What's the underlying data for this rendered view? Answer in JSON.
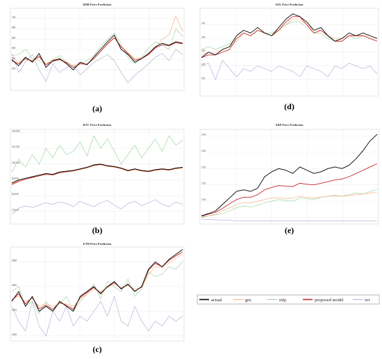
{
  "colors": {
    "actual": "#000000",
    "gru": "#f2a572",
    "mlp": "#8fcf94",
    "proposed_model": "#c62828",
    "svr": "#a8a6d2"
  },
  "legend": {
    "placement": "bottom-right",
    "entries": [
      {
        "key": "actual",
        "label": "actual"
      },
      {
        "key": "gru",
        "label": "gru"
      },
      {
        "key": "mlp",
        "label": "mlp"
      },
      {
        "key": "proposed_model",
        "label": "proposed model"
      },
      {
        "key": "svr",
        "label": "svr"
      }
    ]
  },
  "chart_data": [
    {
      "id": "bnb",
      "panel_label": "(a)",
      "type": "line",
      "grid": true,
      "title": "BNB Price Prediction",
      "ylim": [
        560,
        720
      ],
      "yticks": [
        {
          "v": 600,
          "label": "600"
        },
        {
          "v": 620,
          "label": "620"
        },
        {
          "v": 640,
          "label": "640"
        },
        {
          "v": 660,
          "label": "660"
        },
        {
          "v": 680,
          "label": "680"
        },
        {
          "v": 700,
          "label": "700"
        }
      ],
      "x": [
        0,
        4,
        8,
        12,
        16,
        20,
        24,
        28,
        32,
        36,
        40,
        44,
        48,
        52,
        56,
        60,
        64,
        68,
        72,
        76,
        80,
        84,
        88,
        92,
        96,
        100
      ],
      "series": [
        {
          "key": "actual",
          "values": [
            620,
            608,
            625,
            615,
            632,
            605,
            618,
            622,
            612,
            600,
            615,
            610,
            625,
            640,
            655,
            668,
            640,
            630,
            615,
            622,
            632,
            645,
            652,
            648,
            655,
            652
          ]
        },
        {
          "key": "gru",
          "values": [
            625,
            615,
            624,
            618,
            628,
            612,
            620,
            621,
            616,
            608,
            614,
            612,
            622,
            636,
            650,
            662,
            646,
            634,
            622,
            624,
            630,
            642,
            660,
            668,
            705,
            675
          ]
        },
        {
          "key": "mlp",
          "values": [
            628,
            630,
            640,
            622,
            618,
            610,
            620,
            628,
            615,
            606,
            612,
            618,
            628,
            646,
            660,
            672,
            650,
            625,
            612,
            625,
            642,
            655,
            648,
            640,
            680,
            665
          ]
        },
        {
          "key": "proposed_model",
          "values": [
            618,
            612,
            622,
            617,
            626,
            610,
            617,
            620,
            614,
            604,
            612,
            611,
            622,
            636,
            651,
            663,
            645,
            632,
            619,
            622,
            630,
            643,
            649,
            647,
            653,
            651
          ]
        },
        {
          "key": "svr",
          "values": [
            632,
            595,
            615,
            630,
            600,
            578,
            612,
            595,
            605,
            610,
            590,
            602,
            615,
            622,
            630,
            618,
            595,
            575,
            590,
            600,
            612,
            625,
            632,
            618,
            640,
            630
          ]
        }
      ]
    },
    {
      "id": "sol",
      "panel_label": "(d)",
      "type": "line",
      "grid": true,
      "title": "SOL Price Prediction",
      "ylim": [
        114,
        146
      ],
      "yticks": [
        {
          "v": 120,
          "label": "120"
        },
        {
          "v": 125,
          "label": "125"
        },
        {
          "v": 130,
          "label": "130"
        },
        {
          "v": 135,
          "label": "135"
        },
        {
          "v": 140,
          "label": "140"
        }
      ],
      "x": [
        0,
        4,
        8,
        12,
        16,
        20,
        24,
        28,
        32,
        36,
        40,
        44,
        48,
        52,
        56,
        60,
        64,
        68,
        72,
        76,
        80,
        84,
        88,
        92,
        96,
        100
      ],
      "series": [
        {
          "key": "actual",
          "values": [
            128,
            130,
            129,
            131,
            132,
            136,
            138,
            137,
            139,
            137,
            136,
            139,
            142,
            144,
            143,
            141,
            138,
            139,
            136,
            134,
            135,
            137,
            136,
            137,
            136,
            135
          ]
        },
        {
          "key": "gru",
          "values": [
            129,
            130,
            130,
            131,
            132,
            134,
            137,
            136,
            138,
            137,
            136,
            138,
            140,
            142,
            142,
            140,
            138,
            138,
            136,
            135,
            135,
            136,
            136,
            136,
            136,
            135
          ]
        },
        {
          "key": "mlp",
          "values": [
            131,
            132,
            131,
            132,
            133,
            135,
            137,
            136,
            138,
            137,
            137,
            138,
            140,
            141,
            141,
            139,
            137,
            137,
            135,
            134,
            135,
            136,
            135,
            136,
            135,
            134
          ]
        },
        {
          "key": "proposed_model",
          "values": [
            128,
            129,
            129,
            130,
            131,
            135,
            137,
            136,
            138,
            137,
            136,
            138,
            141,
            143,
            143,
            140,
            137,
            138,
            136,
            134,
            134,
            136,
            136,
            136,
            135,
            134
          ]
        },
        {
          "key": "svr",
          "values": [
            125,
            126,
            120,
            127,
            124,
            121,
            124,
            123,
            125,
            124,
            123,
            125,
            124,
            123,
            121,
            125,
            124,
            123,
            121,
            125,
            124,
            126,
            125,
            124,
            125,
            122
          ]
        }
      ]
    },
    {
      "id": "btc",
      "panel_label": "(b)",
      "type": "line",
      "grid": true,
      "title": "BTC Price Prediction",
      "ylim": [
        62000,
        122000
      ],
      "yticks": [
        {
          "v": 70000,
          "label": "70,000"
        },
        {
          "v": 80000,
          "label": "80,000"
        },
        {
          "v": 90000,
          "label": "90,000"
        },
        {
          "v": 100000,
          "label": "100,000"
        },
        {
          "v": 110000,
          "label": "110,000"
        },
        {
          "v": 120000,
          "label": "120,000"
        }
      ],
      "x": [
        0,
        4,
        8,
        12,
        16,
        20,
        24,
        28,
        32,
        36,
        40,
        44,
        48,
        52,
        56,
        60,
        64,
        68,
        72,
        76,
        80,
        84,
        88,
        92,
        96,
        100
      ],
      "series": [
        {
          "key": "actual",
          "values": [
            88000,
            90000,
            91000,
            92000,
            93000,
            94000,
            93500,
            95000,
            95500,
            96000,
            97000,
            98000,
            99500,
            100000,
            99000,
            98500,
            97500,
            96000,
            97000,
            96000,
            95500,
            96500,
            97000,
            96500,
            97500,
            98000
          ]
        },
        {
          "key": "gru",
          "values": [
            87500,
            89500,
            90500,
            91500,
            92500,
            93500,
            93000,
            94500,
            95000,
            95500,
            96500,
            97500,
            99000,
            99500,
            98500,
            98000,
            97000,
            95500,
            96500,
            95500,
            95000,
            96000,
            96500,
            96000,
            97000,
            97500
          ]
        },
        {
          "key": "mlp",
          "values": [
            95000,
            103000,
            98000,
            106000,
            100000,
            110000,
            104000,
            112000,
            106000,
            108000,
            114000,
            105000,
            118000,
            110000,
            116000,
            108000,
            100000,
            106000,
            112000,
            104000,
            110000,
            116000,
            108000,
            118000,
            112000,
            115000
          ]
        },
        {
          "key": "proposed_model",
          "values": [
            87000,
            89000,
            90500,
            91500,
            92500,
            93500,
            93200,
            94500,
            95200,
            95800,
            96800,
            97800,
            99200,
            99800,
            98800,
            98300,
            97300,
            95800,
            96800,
            95800,
            95300,
            96300,
            96800,
            96300,
            97300,
            97800
          ]
        },
        {
          "key": "svr",
          "values": [
            68000,
            72000,
            73500,
            72500,
            74000,
            75500,
            74500,
            76000,
            75000,
            73000,
            76500,
            74500,
            73000,
            75500,
            77000,
            74000,
            71500,
            75000,
            76500,
            73500,
            75500,
            77500,
            74500,
            73000,
            76000,
            74500
          ]
        }
      ]
    },
    {
      "id": "xrp",
      "panel_label": "(e)",
      "type": "line",
      "grid": true,
      "title": "XRP Price Prediction",
      "ylim": [
        0.3,
        3.2
      ],
      "yticks": [
        {
          "v": 0.5,
          "label": "0.50"
        },
        {
          "v": 1.0,
          "label": "1.00"
        },
        {
          "v": 1.5,
          "label": "1.50"
        },
        {
          "v": 2.0,
          "label": "2.00"
        },
        {
          "v": 2.5,
          "label": "2.50"
        },
        {
          "v": 3.0,
          "label": "3.00"
        }
      ],
      "x": [
        0,
        4,
        8,
        12,
        16,
        20,
        24,
        28,
        32,
        36,
        40,
        44,
        48,
        52,
        56,
        60,
        64,
        68,
        72,
        76,
        80,
        84,
        88,
        92,
        96,
        100
      ],
      "series": [
        {
          "key": "actual",
          "values": [
            0.55,
            0.62,
            0.7,
            0.9,
            1.1,
            1.3,
            1.35,
            1.3,
            1.4,
            1.75,
            1.9,
            2.0,
            1.95,
            1.85,
            2.05,
            1.95,
            1.85,
            1.9,
            2.0,
            2.05,
            2.0,
            2.1,
            2.3,
            2.55,
            2.85,
            3.05
          ]
        },
        {
          "key": "gru",
          "values": [
            0.5,
            0.55,
            0.6,
            0.7,
            0.8,
            0.9,
            0.95,
            0.95,
            1.0,
            1.05,
            1.1,
            1.1,
            1.08,
            1.1,
            1.15,
            1.12,
            1.1,
            1.12,
            1.15,
            1.16,
            1.15,
            1.17,
            1.2,
            1.22,
            1.25,
            1.27
          ]
        },
        {
          "key": "mlp",
          "values": [
            0.5,
            0.55,
            0.58,
            0.62,
            0.7,
            0.8,
            0.85,
            0.82,
            0.88,
            0.95,
            1.0,
            1.05,
            1.02,
            1.0,
            1.1,
            1.08,
            1.05,
            1.12,
            1.15,
            1.18,
            1.15,
            1.2,
            1.25,
            1.22,
            1.3,
            1.35
          ]
        },
        {
          "key": "proposed_model",
          "values": [
            0.55,
            0.6,
            0.66,
            0.78,
            0.92,
            1.05,
            1.12,
            1.12,
            1.2,
            1.35,
            1.42,
            1.48,
            1.46,
            1.45,
            1.55,
            1.52,
            1.5,
            1.55,
            1.6,
            1.65,
            1.68,
            1.75,
            1.85,
            1.95,
            2.05,
            2.15
          ]
        },
        {
          "key": "svr",
          "values": [
            0.45,
            0.44,
            0.43,
            0.42,
            0.41,
            0.4,
            0.4,
            0.4,
            0.4,
            0.4,
            0.4,
            0.4,
            0.4,
            0.4,
            0.4,
            0.4,
            0.4,
            0.4,
            0.4,
            0.4,
            0.4,
            0.4,
            0.4,
            0.4,
            0.4,
            0.4
          ]
        }
      ]
    },
    {
      "id": "eth",
      "panel_label": "(c)",
      "type": "line",
      "grid": true,
      "title": "ETH Price Prediction",
      "ylim": [
        1900,
        3800
      ],
      "yticks": [
        {
          "v": 2000,
          "label": "2000"
        },
        {
          "v": 2500,
          "label": "2500"
        },
        {
          "v": 3000,
          "label": "3000"
        },
        {
          "v": 3500,
          "label": "3500"
        }
      ],
      "x": [
        0,
        4,
        8,
        12,
        16,
        20,
        24,
        28,
        32,
        36,
        40,
        44,
        48,
        52,
        56,
        60,
        64,
        68,
        72,
        76,
        80,
        84,
        88,
        92,
        96,
        100
      ],
      "series": [
        {
          "key": "actual",
          "values": [
            2700,
            2900,
            2600,
            2800,
            2500,
            2600,
            2500,
            2700,
            2600,
            2500,
            2800,
            2900,
            3000,
            2850,
            3000,
            3100,
            2950,
            3050,
            2900,
            3000,
            3350,
            3500,
            3400,
            3550,
            3650,
            3750
          ]
        },
        {
          "key": "gru",
          "values": [
            2750,
            2800,
            2700,
            2750,
            2600,
            2650,
            2600,
            2650,
            2650,
            2600,
            2750,
            2850,
            2950,
            2900,
            2980,
            3050,
            2980,
            3020,
            2950,
            2980,
            3250,
            3400,
            3380,
            3480,
            3580,
            3650
          ]
        },
        {
          "key": "mlp",
          "values": [
            2900,
            3000,
            2600,
            2700,
            2450,
            2700,
            2500,
            2650,
            2800,
            2500,
            2700,
            2850,
            3050,
            2750,
            3100,
            3000,
            2900,
            3150,
            2800,
            2950,
            3300,
            3200,
            3250,
            3400,
            3350,
            3500
          ]
        },
        {
          "key": "proposed_model",
          "values": [
            2720,
            2850,
            2650,
            2780,
            2550,
            2620,
            2540,
            2680,
            2620,
            2540,
            2780,
            2880,
            2980,
            2870,
            2990,
            3080,
            2960,
            3040,
            2910,
            2990,
            3330,
            3470,
            3400,
            3530,
            3620,
            3700
          ]
        },
        {
          "key": "svr",
          "values": [
            2600,
            2300,
            2100,
            2700,
            2200,
            2000,
            2500,
            2300,
            2600,
            2200,
            2400,
            2300,
            2500,
            2700,
            2400,
            2800,
            2300,
            2200,
            2600,
            2300,
            2100,
            2300,
            2200,
            2400,
            2300,
            2400
          ]
        }
      ]
    }
  ]
}
